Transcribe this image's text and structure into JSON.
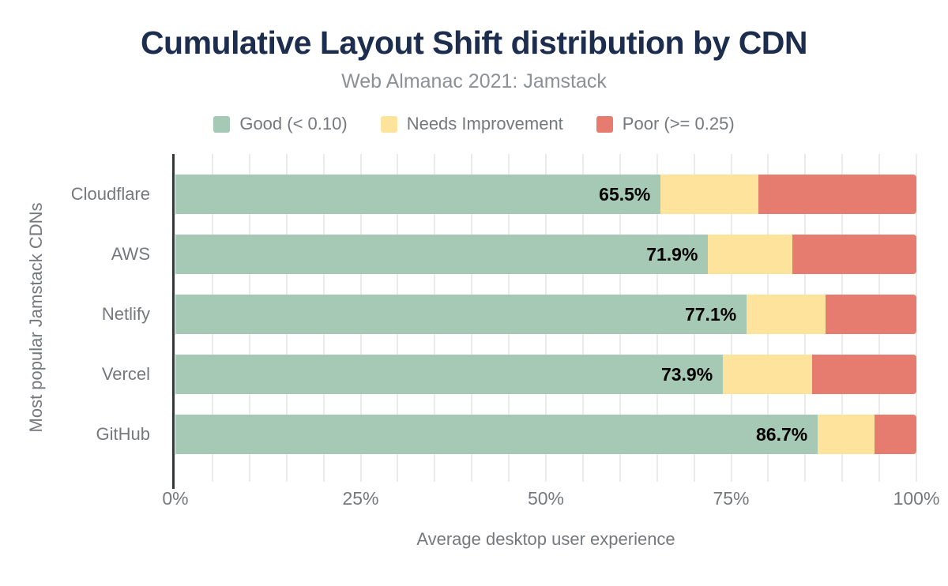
{
  "header": {
    "title": "Cumulative Layout Shift distribution by CDN",
    "subtitle": "Web Almanac 2021: Jamstack"
  },
  "legend": [
    {
      "name": "good-legend",
      "label": "Good (< 0.10)",
      "color": "#a6c9b5"
    },
    {
      "name": "needs-improvement-legend",
      "label": "Needs Improvement",
      "color": "#fde39b"
    },
    {
      "name": "poor-legend",
      "label": "Poor (>= 0.25)",
      "color": "#e67c6f"
    }
  ],
  "chart_data": {
    "type": "bar",
    "orientation": "horizontal",
    "stacked": true,
    "title": "Cumulative Layout Shift distribution by CDN",
    "subtitle": "Web Almanac 2021: Jamstack",
    "categories": [
      "Cloudflare",
      "AWS",
      "Netlify",
      "Vercel",
      "GitHub"
    ],
    "series": [
      {
        "name": "Good (< 0.10)",
        "color": "#a6c9b5",
        "values": [
          65.5,
          71.9,
          77.1,
          73.9,
          86.7
        ]
      },
      {
        "name": "Needs Improvement",
        "color": "#fde39b",
        "values": [
          13.2,
          11.4,
          10.6,
          12.0,
          7.6
        ]
      },
      {
        "name": "Poor (>= 0.25)",
        "color": "#e67c6f",
        "values": [
          21.3,
          16.7,
          12.3,
          14.1,
          5.7
        ]
      }
    ],
    "bar_labels": [
      "65.5%",
      "71.9%",
      "77.1%",
      "73.9%",
      "86.7%"
    ],
    "x_ticks": [
      "0%",
      "25%",
      "50%",
      "75%",
      "100%"
    ],
    "x_tick_values": [
      0,
      25,
      50,
      75,
      100
    ],
    "xlim": [
      0,
      100
    ],
    "grid_step_percent": 5,
    "grid": true,
    "legend_position": "top",
    "xlabel": "Average desktop user experience",
    "ylabel": "Most popular Jamstack CDNs"
  },
  "colors": {
    "title": "#1d2d4e",
    "subtitle": "#8c9197",
    "axis_label": "#75797e",
    "data_label": "#000000",
    "gridline": "#ebebeb",
    "axis_line": "#33373a",
    "background": "#ffffff"
  }
}
